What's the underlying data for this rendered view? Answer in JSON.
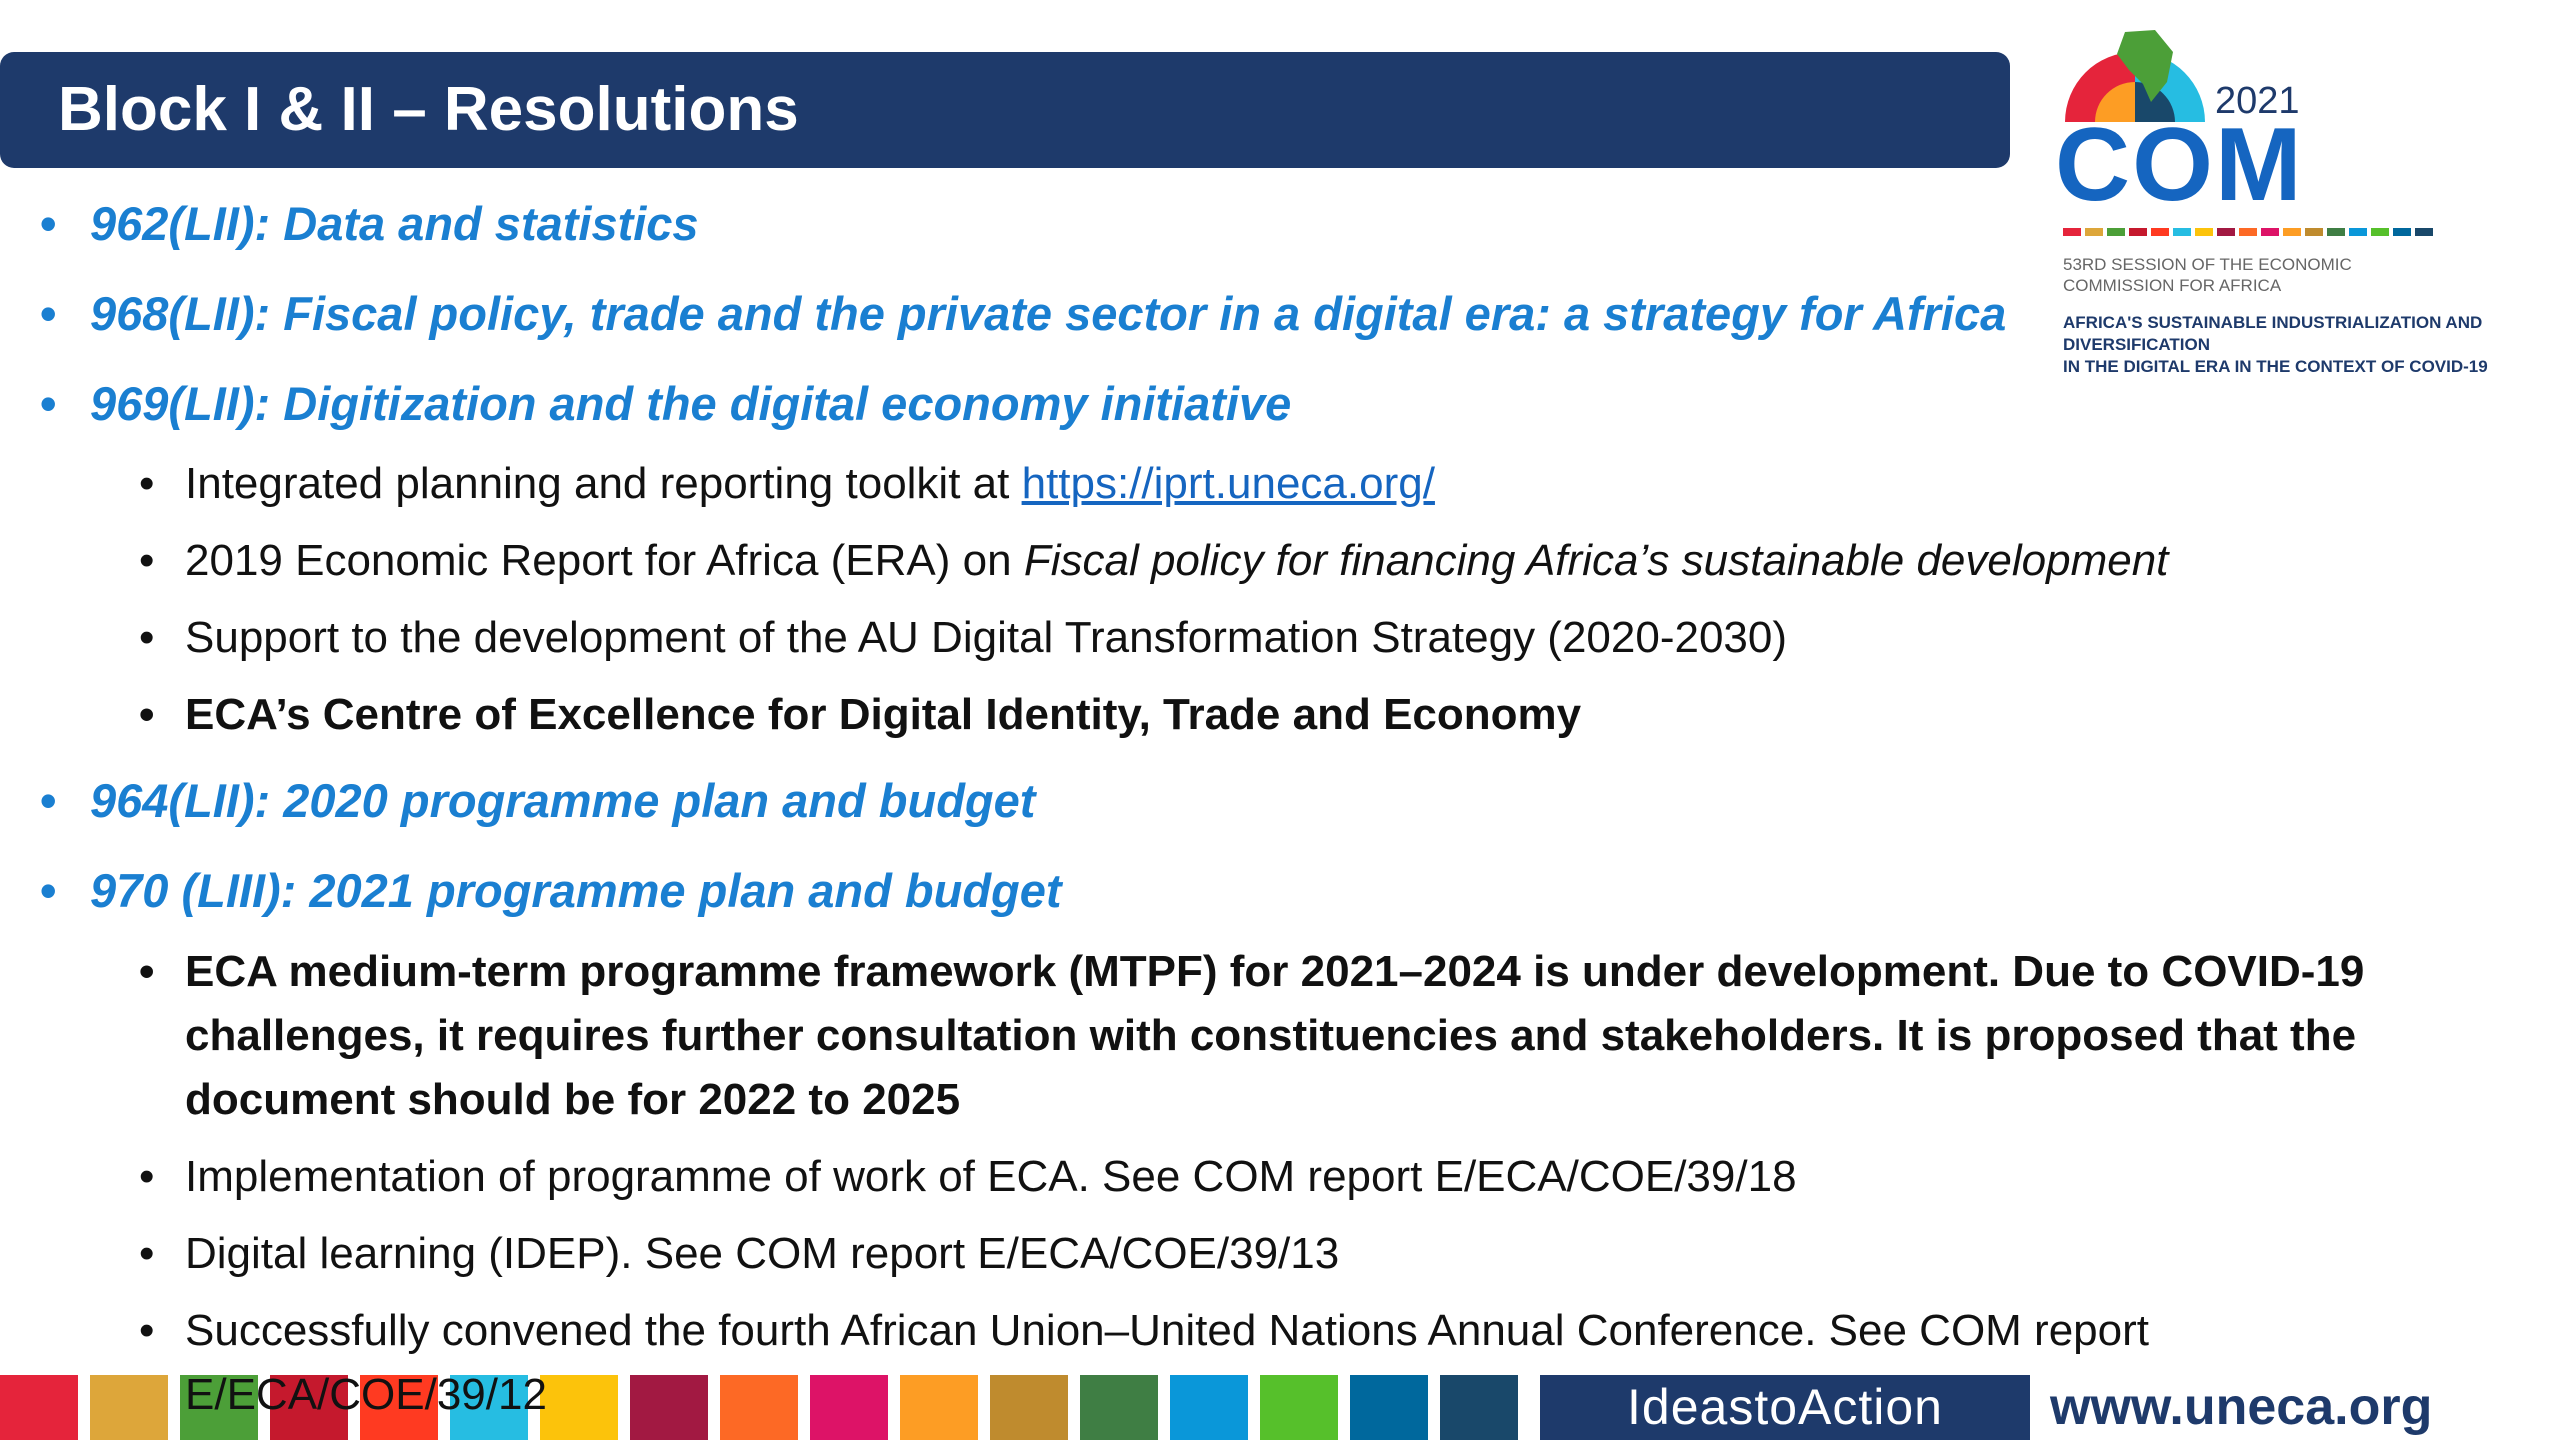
{
  "title": "Block I & II – Resolutions",
  "logo": {
    "year": "2021",
    "acronym": "COM",
    "session_line1": "53RD SESSION OF THE ECONOMIC",
    "session_line2": "COMMISSION FOR AFRICA",
    "theme_line1": "AFRICA'S SUSTAINABLE INDUSTRIALIZATION AND DIVERSIFICATION",
    "theme_line2": "IN THE DIGITAL ERA IN THE CONTEXT OF COVID-19",
    "stripe_colors": [
      "#e5243b",
      "#dda63a",
      "#4c9f38",
      "#c5192d",
      "#ff3a21",
      "#26bde2",
      "#fcc30b",
      "#a21942",
      "#fd6925",
      "#dd1367",
      "#fd9d24",
      "#bf8b2e",
      "#3f7e44",
      "#0a97d9",
      "#56c02b",
      "#00689d",
      "#19486a"
    ]
  },
  "resolutions": [
    {
      "code": "962(LII): Data and statistics"
    },
    {
      "code": "968(LII): Fiscal policy, trade and the private sector in a digital era: a strategy for Africa"
    },
    {
      "code": "969(LII): Digitization and the digital economy initiative",
      "items": [
        {
          "text": "Integrated planning and reporting toolkit at ",
          "link": "https://iprt.uneca.org/"
        },
        {
          "text": "2019 Economic Report for Africa (ERA) on ",
          "italic": "Fiscal policy for financing Africa’s sustainable development"
        },
        {
          "text": "Support to the development of the AU Digital Transformation Strategy (2020-2030)"
        },
        {
          "text": "ECA’s Centre of Excellence for Digital Identity, Trade and Economy"
        }
      ]
    },
    {
      "code": "964(LII): 2020 programme plan and budget"
    },
    {
      "code": "970 (LIII): 2021 programme plan and budget",
      "items": [
        {
          "text": "ECA medium-term programme framework (MTPF) for 2021–2024 is under development. Due to COVID-19 challenges, it requires further consultation with constituencies and stakeholders. It is proposed that the document should be for 2022 to 2025"
        },
        {
          "text": "Implementation of programme of work of ECA. See COM report E/ECA/COE/39/18"
        },
        {
          "text": "Digital learning (IDEP). See COM report E/ECA/COE/39/13"
        },
        {
          "text": "Successfully convened the fourth African Union–United Nations Annual Conference. See COM report E/ECA/COE/39/12"
        }
      ]
    }
  ],
  "footer": {
    "ideas_to_action": "IdeastoAction",
    "website": "www.uneca.org",
    "block_colors": [
      "#e5243b",
      "#dda63a",
      "#4c9f38",
      "#c5192d",
      "#ff3a21",
      "#26bde2",
      "#fcc30b",
      "#a21942",
      "#fd6925",
      "#dd1367",
      "#fd9d24",
      "#bf8b2e",
      "#3f7e44",
      "#0a97d9",
      "#56c02b",
      "#00689d",
      "#19486a"
    ]
  }
}
